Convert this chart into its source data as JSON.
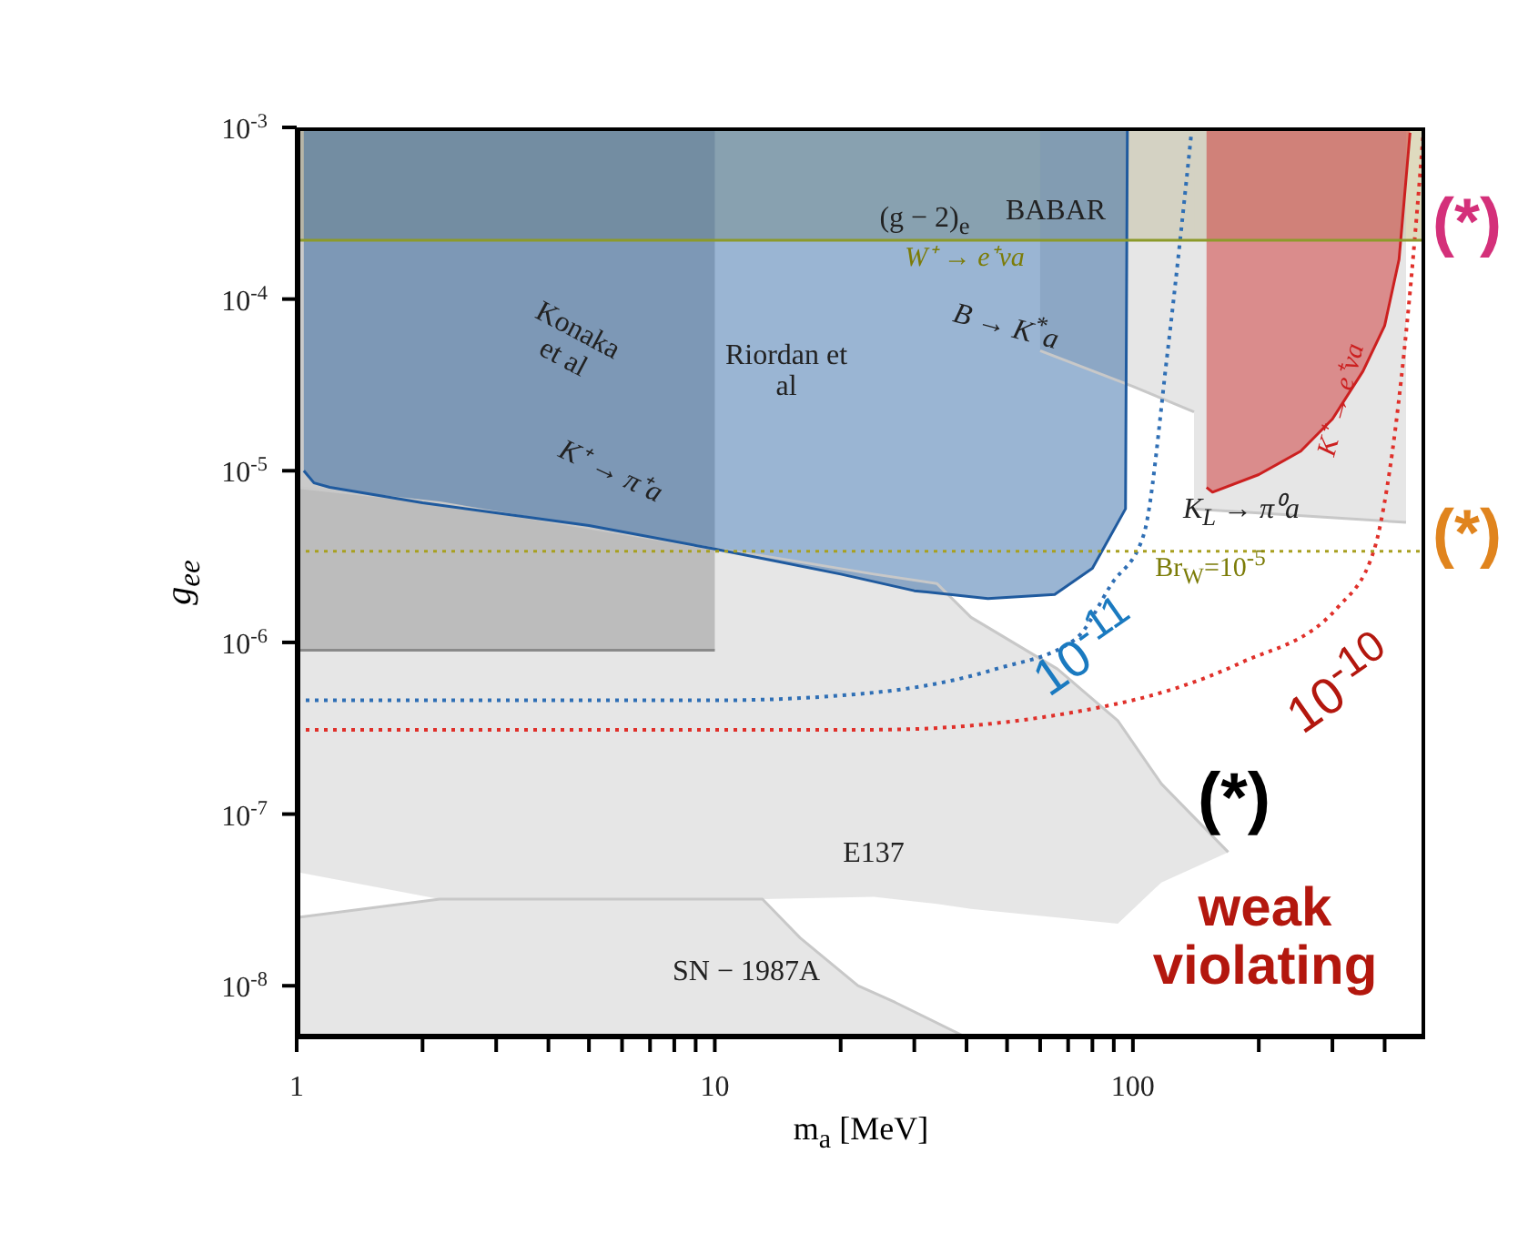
{
  "chart_data": {
    "type": "line",
    "xlabel": "m$_{a}$ [MeV]",
    "ylabel": "g$_{ee}$",
    "log": "xy",
    "xlim": [
      1,
      500
    ],
    "ylim": [
      5e-09,
      0.001
    ],
    "xticks": [
      1,
      {
        "value": 2,
        "label": null
      },
      {
        "value": 3,
        "label": null
      },
      {
        "value": 4,
        "label": null
      },
      {
        "value": 5,
        "label": null
      },
      {
        "value": 6,
        "label": null
      },
      {
        "value": 7,
        "label": null
      },
      {
        "value": 8,
        "label": null
      },
      {
        "value": 9,
        "label": null
      },
      10,
      {
        "value": 20,
        "label": null
      },
      {
        "value": 30,
        "label": null
      },
      {
        "value": 40,
        "label": null
      },
      {
        "value": 50,
        "label": null
      },
      {
        "value": 60,
        "label": null
      },
      {
        "value": 70,
        "label": null
      },
      {
        "value": 80,
        "label": null
      },
      {
        "value": 90,
        "label": null
      },
      100,
      {
        "value": 200,
        "label": null
      },
      {
        "value": 300,
        "label": null
      },
      {
        "value": 400,
        "label": null
      }
    ],
    "yticks": [
      {
        "value": 1e-08,
        "label": "10$^{-8}$"
      },
      {
        "value": 1e-07,
        "label": "10$^{-7}$"
      },
      {
        "value": 1e-06,
        "label": "10$^{-6}$"
      },
      {
        "value": 1e-05,
        "label": "10$^{-5}$"
      },
      {
        "value": 0.0001,
        "label": "10$^{-4}$"
      },
      {
        "value": 0.001,
        "label": "10$^{-3}$"
      }
    ],
    "grid": false,
    "marker": "none",
    "series": [
      {
        "color": "#c8c8c8",
        "x": [
          1,
          2.2,
          13,
          16,
          22,
          27,
          40
        ],
        "values": [
          2.5e-08,
          3.2e-08,
          3.2e-08,
          1.9e-08,
          1e-08,
          8e-09,
          5e-09
        ],
        "lower": [
          5e-09,
          5e-09,
          5e-09,
          5e-09,
          5e-09,
          5e-09,
          5e-09
        ],
        "upper": [
          2.5e-08,
          3.2e-08,
          3.2e-08,
          1.9e-08,
          1e-08,
          8e-09,
          5e-09
        ]
      },
      {
        "color": "#c8c8c8",
        "x": [
          1,
          2.2,
          10,
          13,
          24,
          34,
          41,
          66,
          92,
          117,
          169
        ],
        "values": [
          8e-06,
          6.5e-06,
          3.5e-06,
          3.2e-06,
          2.5e-06,
          2.2e-06,
          1.4e-06,
          7e-07,
          3.5e-07,
          1.5e-07,
          6e-08
        ],
        "lower": [
          4.6e-08,
          3.2e-08,
          3.2e-08,
          3.2e-08,
          3.3e-08,
          3e-08,
          2.8e-08,
          2.5e-08,
          2.3e-08,
          4e-08,
          6e-08
        ],
        "upper": [
          8e-06,
          6.5e-06,
          3.5e-06,
          3.2e-06,
          2.5e-06,
          2.2e-06,
          1.4e-06,
          7e-07,
          3.5e-07,
          1.5e-07,
          6e-08
        ]
      },
      {
        "color": "#8a8a8a",
        "x": [
          1,
          10
        ],
        "values": [
          9e-07,
          9e-07
        ],
        "lower": [
          9e-07,
          9e-07
        ],
        "upper": [
          0.001,
          0.001
        ]
      },
      {
        "color": "#c8c8c8",
        "x": [
          60,
          100,
          140
        ],
        "values": [
          5e-05,
          3.1e-05,
          2.2e-05
        ],
        "lower": [
          5e-05,
          3.1e-05,
          2.2e-05
        ],
        "upper": [
          0.001,
          0.001,
          0.001
        ]
      },
      {
        "color": "#c8c8c8",
        "x": [
          140,
          450
        ],
        "values": [
          6e-06,
          5e-06
        ],
        "lower": [
          6e-06,
          5e-06
        ],
        "upper": [
          0.001,
          0.001
        ]
      },
      {
        "color": "#1f5a9e",
        "x": [
          1.04,
          1.1,
          1.2,
          2,
          5,
          10,
          20,
          30,
          45,
          65,
          80,
          96,
          97
        ],
        "values": [
          1e-05,
          8.5e-06,
          8e-06,
          6.5e-06,
          4.8e-06,
          3.5e-06,
          2.5e-06,
          2e-06,
          1.8e-06,
          1.9e-06,
          2.7e-06,
          6e-06,
          0.001
        ],
        "lower": [
          1e-05,
          8.5e-06,
          8e-06,
          6.5e-06,
          4.8e-06,
          3.5e-06,
          2.5e-06,
          2e-06,
          1.8e-06,
          1.9e-06,
          2.7e-06,
          6e-06,
          0.001
        ],
        "upper": [
          0.001,
          0.001,
          0.001,
          0.001,
          0.001,
          0.001,
          0.001,
          0.001,
          0.001,
          0.001,
          0.001,
          0.001,
          0.001
        ]
      },
      {
        "color": "#cc2020",
        "x": [
          150,
          155,
          200,
          252,
          300,
          355,
          400,
          433,
          460
        ],
        "values": [
          8e-06,
          7.5e-06,
          9.5e-06,
          1.3e-05,
          2e-05,
          3.8e-05,
          7e-05,
          0.00017,
          0.00093
        ],
        "lower": [
          8e-06,
          7.5e-06,
          9.5e-06,
          1.3e-05,
          2e-05,
          3.8e-05,
          7e-05,
          0.00017,
          0.00093
        ],
        "upper": [
          0.001,
          0.001,
          0.001,
          0.001,
          0.001,
          0.001,
          0.001,
          0.001,
          0.001
        ]
      },
      {
        "color": "#2f6fb5",
        "line_style": "dotted",
        "x": [
          1,
          10,
          24,
          47,
          73,
          89,
          106,
          121,
          138
        ],
        "values": [
          4.6e-07,
          4.6e-07,
          5.1e-07,
          7e-07,
          1.05e-06,
          2.2e-06,
          4.2e-06,
          4.9e-05,
          0.00093
        ]
      },
      {
        "color": "#e0302a",
        "line_style": "dotted",
        "x": [
          1,
          24,
          92,
          181,
          309,
          378,
          405,
          460,
          495
        ],
        "values": [
          3.1e-07,
          3.1e-07,
          4.4e-07,
          7.6e-07,
          1.6e-06,
          3.5e-06,
          7.9e-06,
          0.00011,
          0.00093
        ]
      }
    ],
    "bands": [
      {
        "axis": "y",
        "from": 0.00022,
        "to": 0.001,
        "color": "#b8b070"
      }
    ],
    "ref_lines": [
      {
        "axis": "y",
        "value": 0.00022,
        "color": "#8c9a2a",
        "line_style": "solid"
      },
      {
        "axis": "y",
        "value": 3.4e-06,
        "color": "#a8a020",
        "line_style": "dotted"
      }
    ],
    "annotations": [
      "(g − 2)$_{e}$",
      "BABAR",
      "Konaka et al",
      "Riordan et al",
      "B → K$^{*}$a",
      "K⁺ → π⁺a",
      "K$_{L}$ → π⁰a",
      "K⁺ → e⁺νa",
      "10$^{-11}$",
      "10$^{-10}$",
      "E137",
      "SN − 1987A",
      "(*)",
      "weak violating",
      "(*)",
      "(*)",
      "W⁺ → e⁺νa",
      "Br$_{W}$=10$^{-5}$"
    ]
  }
}
